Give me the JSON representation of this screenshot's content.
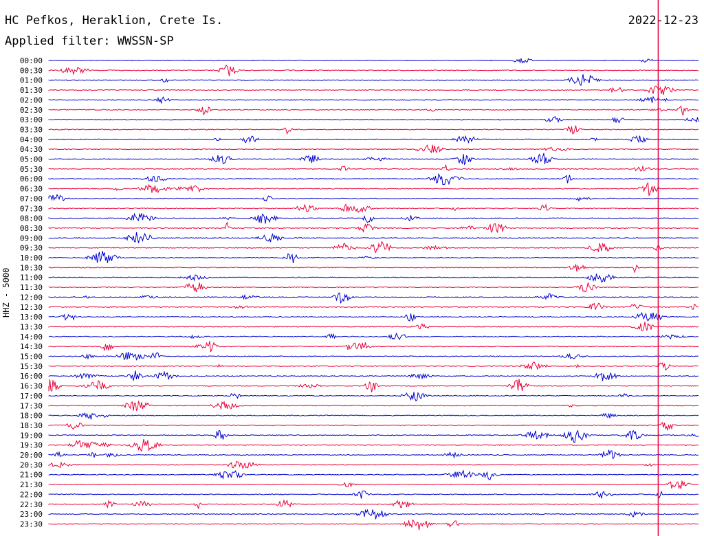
{
  "header": {
    "station": "HC Pefkos, Heraklion, Crete Is.",
    "filter": "Applied filter: WWSSN-SP",
    "date": "2022-12-23"
  },
  "axis": {
    "channel_label": "HHZ - 5000"
  },
  "colors": {
    "trace_even": "#0000cc",
    "trace_odd": "#e8003a",
    "marker": "#e8003a"
  },
  "chart_data": {
    "type": "line",
    "title": "HC Pefkos, Heraklion, Crete Is.",
    "xlabel": "",
    "ylabel": "HHZ - 5000",
    "rows": [
      "00:00",
      "00:30",
      "01:00",
      "01:30",
      "02:00",
      "02:30",
      "03:00",
      "03:30",
      "04:00",
      "04:30",
      "05:00",
      "05:30",
      "06:00",
      "06:30",
      "07:00",
      "07:30",
      "08:00",
      "08:30",
      "09:00",
      "09:30",
      "10:00",
      "10:30",
      "11:00",
      "11:30",
      "12:00",
      "12:30",
      "13:00",
      "13:30",
      "14:00",
      "14:30",
      "15:00",
      "15:30",
      "16:00",
      "16:30",
      "17:00",
      "17:30",
      "18:00",
      "18:30",
      "19:00",
      "19:30",
      "20:00",
      "20:30",
      "21:00",
      "21:30",
      "22:00",
      "22:30",
      "23:00",
      "23:30"
    ],
    "row_minutes": 30,
    "current_time_marker_fraction": 0.938
  }
}
